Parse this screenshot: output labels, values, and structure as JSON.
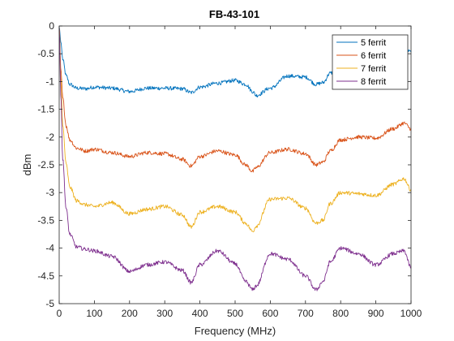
{
  "chart_data": {
    "type": "line",
    "title": "FB-43-101",
    "xlabel": "Frequency (MHz)",
    "ylabel": "dBm",
    "xlim": [
      0,
      1000
    ],
    "ylim": [
      -5,
      0
    ],
    "x_ticks": [
      0,
      100,
      200,
      300,
      400,
      500,
      600,
      700,
      800,
      900,
      1000
    ],
    "y_ticks": [
      0,
      -0.5,
      -1,
      -1.5,
      -2,
      -2.5,
      -3,
      -3.5,
      -4,
      -4.5,
      -5
    ],
    "x_tick_labels": [
      "0",
      "100",
      "200",
      "300",
      "400",
      "500",
      "600",
      "700",
      "800",
      "900",
      "1000"
    ],
    "y_tick_labels": [
      "0",
      "-0.5",
      "-1",
      "-1.5",
      "-2",
      "-2.5",
      "-3",
      "-3.5",
      "-4",
      "-4.5",
      "-5"
    ],
    "grid": false,
    "legend_position": "top-right",
    "series": [
      {
        "name": "5 ferrit",
        "color": "#0072BD",
        "x": [
          0,
          5,
          10,
          20,
          30,
          50,
          75,
          100,
          150,
          200,
          250,
          300,
          350,
          375,
          400,
          450,
          500,
          530,
          550,
          560,
          600,
          650,
          700,
          730,
          750,
          770,
          800,
          850,
          900,
          950,
          980,
          1000
        ],
        "y": [
          -0.02,
          -0.3,
          -0.6,
          -0.9,
          -1.05,
          -1.12,
          -1.13,
          -1.1,
          -1.12,
          -1.18,
          -1.12,
          -1.12,
          -1.13,
          -1.2,
          -1.1,
          -1.03,
          -0.98,
          -1.05,
          -1.18,
          -1.25,
          -1.12,
          -0.9,
          -0.92,
          -1.05,
          -1.02,
          -0.85,
          -0.75,
          -0.68,
          -0.63,
          -0.5,
          -0.42,
          -0.47
        ]
      },
      {
        "name": "6 ferrit",
        "color": "#D95319",
        "x": [
          0,
          5,
          10,
          20,
          30,
          50,
          75,
          100,
          150,
          200,
          250,
          300,
          350,
          375,
          400,
          450,
          500,
          530,
          550,
          560,
          600,
          650,
          700,
          730,
          750,
          770,
          800,
          850,
          900,
          950,
          980,
          1000
        ],
        "y": [
          -0.02,
          -0.8,
          -1.3,
          -1.8,
          -2.05,
          -2.2,
          -2.25,
          -2.22,
          -2.28,
          -2.35,
          -2.28,
          -2.3,
          -2.4,
          -2.52,
          -2.35,
          -2.25,
          -2.32,
          -2.5,
          -2.62,
          -2.55,
          -2.28,
          -2.22,
          -2.3,
          -2.5,
          -2.45,
          -2.25,
          -2.05,
          -2.0,
          -2.02,
          -1.85,
          -1.75,
          -1.85
        ]
      },
      {
        "name": "7 ferrit",
        "color": "#EDB120",
        "x": [
          0,
          5,
          10,
          20,
          30,
          50,
          75,
          100,
          150,
          200,
          250,
          300,
          350,
          375,
          400,
          450,
          500,
          530,
          550,
          560,
          600,
          650,
          700,
          730,
          750,
          770,
          800,
          850,
          900,
          950,
          980,
          1000
        ],
        "y": [
          -0.02,
          -1.0,
          -1.8,
          -2.5,
          -2.9,
          -3.15,
          -3.22,
          -3.25,
          -3.18,
          -3.38,
          -3.3,
          -3.25,
          -3.4,
          -3.62,
          -3.35,
          -3.25,
          -3.35,
          -3.55,
          -3.7,
          -3.6,
          -3.12,
          -3.1,
          -3.28,
          -3.55,
          -3.5,
          -3.2,
          -3.0,
          -3.02,
          -3.05,
          -2.85,
          -2.75,
          -2.95
        ]
      },
      {
        "name": "8 ferrit",
        "color": "#7E2F8E",
        "x": [
          0,
          5,
          10,
          20,
          30,
          50,
          75,
          100,
          150,
          200,
          250,
          300,
          350,
          375,
          400,
          450,
          500,
          530,
          550,
          560,
          600,
          650,
          700,
          730,
          750,
          770,
          800,
          850,
          900,
          950,
          980,
          1000
        ],
        "y": [
          -0.02,
          -1.3,
          -2.4,
          -3.3,
          -3.75,
          -3.98,
          -4.02,
          -4.05,
          -4.15,
          -4.42,
          -4.3,
          -4.25,
          -4.4,
          -4.62,
          -4.3,
          -4.05,
          -4.28,
          -4.6,
          -4.75,
          -4.68,
          -4.1,
          -4.2,
          -4.5,
          -4.75,
          -4.6,
          -4.25,
          -4.0,
          -4.1,
          -4.3,
          -4.1,
          -4.05,
          -4.35
        ]
      }
    ]
  }
}
